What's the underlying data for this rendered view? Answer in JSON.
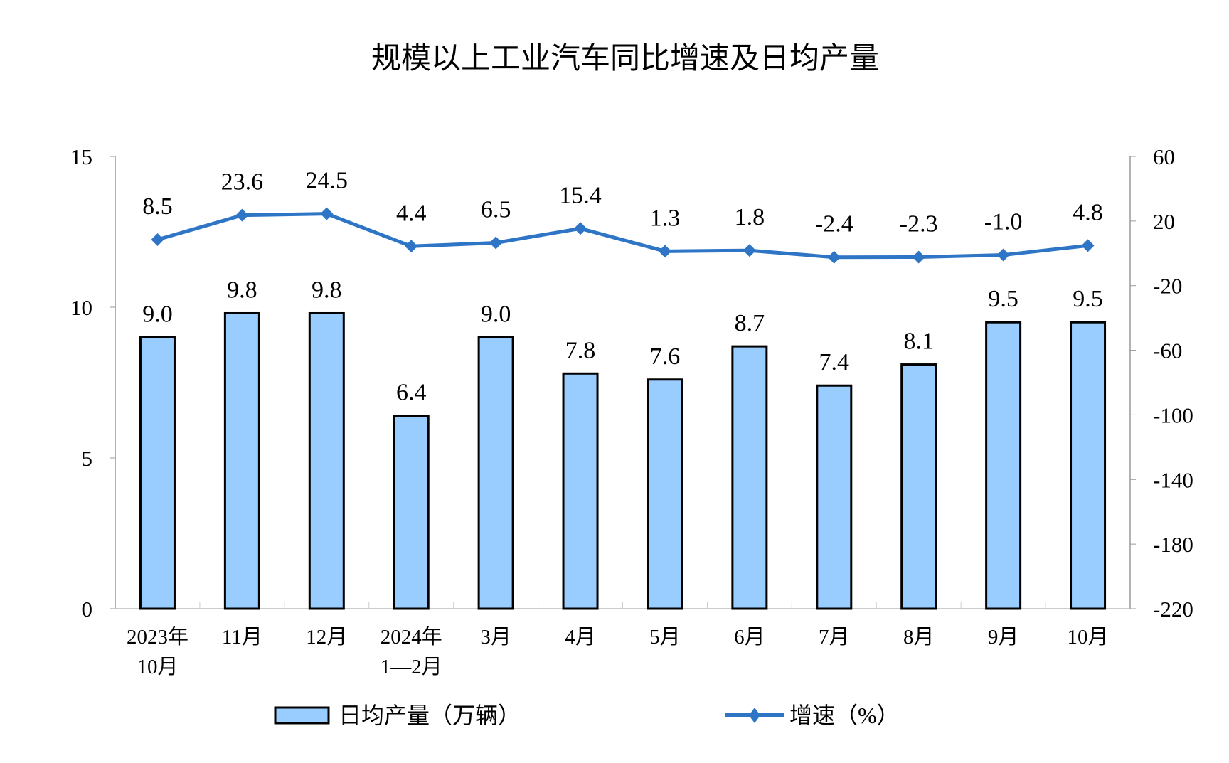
{
  "chart_data": {
    "type": "bar+line",
    "title": "规模以上工业汽车同比增速及日均产量",
    "categories": [
      [
        "2023年",
        "10月"
      ],
      [
        "11月"
      ],
      [
        "12月"
      ],
      [
        "2024年",
        "1—2月"
      ],
      [
        "3月"
      ],
      [
        "4月"
      ],
      [
        "5月"
      ],
      [
        "6月"
      ],
      [
        "7月"
      ],
      [
        "8月"
      ],
      [
        "9月"
      ],
      [
        "10月"
      ]
    ],
    "series": [
      {
        "name": "日均产量（万辆）",
        "type": "bar",
        "axis": "left",
        "color": "#99CCFF",
        "values": [
          9.0,
          9.8,
          9.8,
          6.4,
          9.0,
          7.8,
          7.6,
          8.7,
          7.4,
          8.1,
          9.5,
          9.5
        ],
        "labels": [
          "9.0",
          "9.8",
          "9.8",
          "6.4",
          "9.0",
          "7.8",
          "7.6",
          "8.7",
          "7.4",
          "8.1",
          "9.5",
          "9.5"
        ]
      },
      {
        "name": "增速（%）",
        "type": "line",
        "axis": "right",
        "color": "#2E75C6",
        "marker": "diamond",
        "values": [
          8.5,
          23.6,
          24.5,
          4.4,
          6.5,
          15.4,
          1.3,
          1.8,
          -2.4,
          -2.3,
          -1.0,
          4.8
        ],
        "labels": [
          "8.5",
          "23.6",
          "24.5",
          "4.4",
          "6.5",
          "15.4",
          "1.3",
          "1.8",
          "-2.4",
          "-2.3",
          "-1.0",
          "4.8"
        ]
      }
    ],
    "left_axis": {
      "ylim": [
        0,
        15
      ],
      "ticks": [
        "0",
        "5",
        "10",
        "15"
      ]
    },
    "right_axis": {
      "ylim": [
        -220,
        60
      ],
      "ticks": [
        "-220",
        "-180",
        "-140",
        "-100",
        "-60",
        "-20",
        "20",
        "60"
      ]
    },
    "grid": false,
    "legend_placement": "bottom"
  }
}
